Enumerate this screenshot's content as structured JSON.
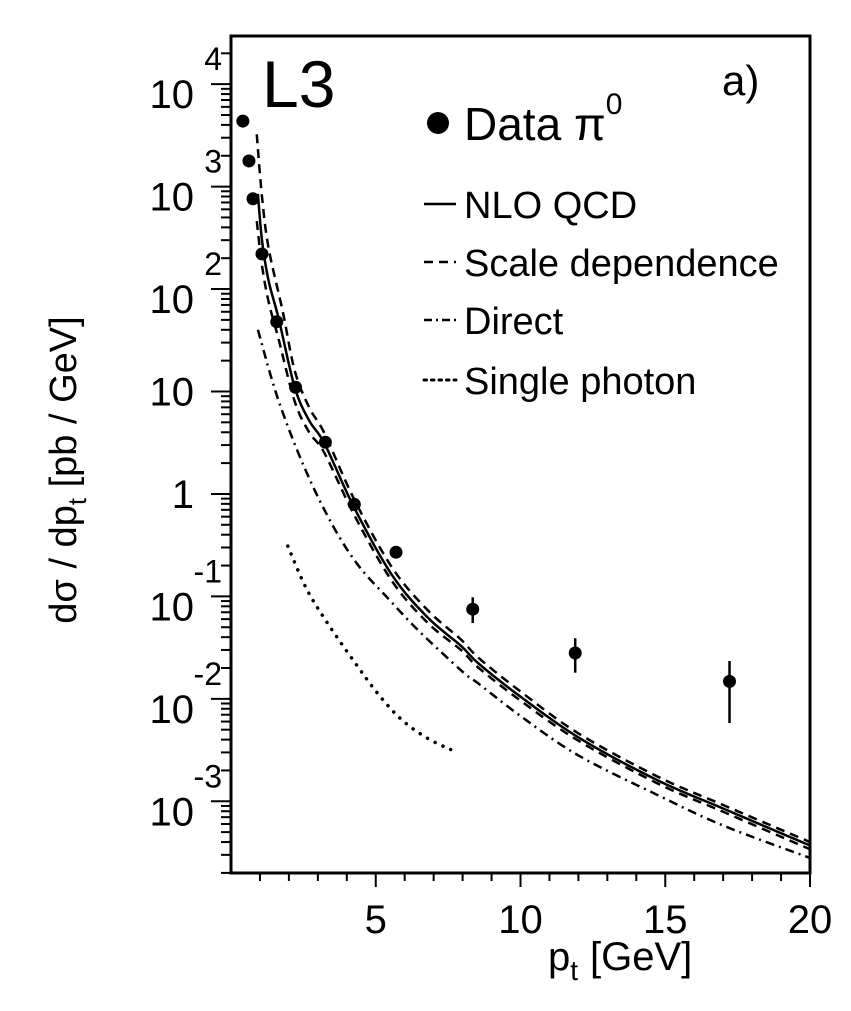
{
  "chart_data": {
    "type": "scatter",
    "experiment_label": "L3",
    "panel_label": "a)",
    "xlabel": "p",
    "xlabel_sub": "t",
    "xlabel_unit": "[GeV]",
    "ylabel_parts": [
      "dσ / dp",
      "t",
      " [pb / GeV]"
    ],
    "xlim": [
      0,
      20
    ],
    "ylim_log10": [
      -3.7,
      4.47
    ],
    "yscale": "log",
    "grid": false,
    "legend_position": "top-right",
    "x_ticks": [
      {
        "value": 5,
        "label": "5"
      },
      {
        "value": 10,
        "label": "10"
      },
      {
        "value": 15,
        "label": "15"
      },
      {
        "value": 20,
        "label": "20"
      }
    ],
    "y_ticks": [
      {
        "exp": 4,
        "base": "10",
        "sup": "4"
      },
      {
        "exp": 3,
        "base": "10",
        "sup": "3"
      },
      {
        "exp": 2,
        "base": "10",
        "sup": "2"
      },
      {
        "exp": 1,
        "base": "10",
        "sup": ""
      },
      {
        "exp": 0,
        "base": "1",
        "sup": ""
      },
      {
        "exp": -1,
        "base": "10",
        "sup": "-1"
      },
      {
        "exp": -2,
        "base": "10",
        "sup": "-2"
      },
      {
        "exp": -3,
        "base": "10",
        "sup": "-3"
      }
    ],
    "legend": [
      {
        "key": "data",
        "label": "Data π",
        "sup": "0",
        "style": "marker"
      },
      {
        "key": "nlo",
        "label": "NLO QCD",
        "style": "solid"
      },
      {
        "key": "scale",
        "label": "Scale dependence",
        "style": "dashed"
      },
      {
        "key": "direct",
        "label": "Direct",
        "style": "dashdot"
      },
      {
        "key": "single",
        "label": "Single photon",
        "style": "dotted"
      }
    ],
    "series": [
      {
        "name": "Data π0",
        "style": "marker",
        "points": [
          {
            "x": 0.41,
            "y": 4360,
            "ylo": 4360,
            "yhi": 4360
          },
          {
            "x": 0.62,
            "y": 1780,
            "ylo": 1780,
            "yhi": 1780
          },
          {
            "x": 0.76,
            "y": 760,
            "ylo": 760,
            "yhi": 760
          },
          {
            "x": 1.07,
            "y": 220,
            "ylo": 220,
            "yhi": 220
          },
          {
            "x": 1.58,
            "y": 48,
            "ylo": 48,
            "yhi": 48
          },
          {
            "x": 2.23,
            "y": 11,
            "ylo": 11,
            "yhi": 11
          },
          {
            "x": 3.26,
            "y": 3.2,
            "ylo": 2.9,
            "yhi": 3.6
          },
          {
            "x": 4.26,
            "y": 0.79,
            "ylo": 0.7,
            "yhi": 0.9
          },
          {
            "x": 5.7,
            "y": 0.27,
            "ylo": 0.24,
            "yhi": 0.31
          },
          {
            "x": 8.35,
            "y": 0.075,
            "ylo": 0.055,
            "yhi": 0.098
          },
          {
            "x": 11.89,
            "y": 0.028,
            "ylo": 0.018,
            "yhi": 0.039
          },
          {
            "x": 17.22,
            "y": 0.0148,
            "ylo": 0.0058,
            "yhi": 0.0234
          }
        ]
      },
      {
        "name": "NLO QCD",
        "style": "solid",
        "x": [
          0.93,
          1.07,
          1.3,
          1.65,
          2.2,
          2.7,
          3.23,
          4.26,
          5.57,
          6.8,
          7.94,
          8.56,
          10.0,
          12.0,
          14.74,
          17.0,
          20.0
        ],
        "y": [
          850,
          300,
          120,
          51,
          11,
          5.2,
          3.1,
          0.73,
          0.16,
          0.062,
          0.033,
          0.022,
          0.0105,
          0.0042,
          0.0016,
          0.00085,
          0.00037
        ]
      },
      {
        "name": "Scale dependence (upper)",
        "style": "dashed",
        "x": [
          0.89,
          1.07,
          1.3,
          1.79,
          2.2,
          2.7,
          3.23,
          4.26,
          5.57,
          6.8,
          7.94,
          8.56,
          10.0,
          12.0,
          14.74,
          17.0,
          20.0
        ],
        "y": [
          3240,
          800,
          250,
          60,
          16,
          7.0,
          3.9,
          0.88,
          0.19,
          0.073,
          0.038,
          0.025,
          0.0118,
          0.0046,
          0.00174,
          0.00092,
          0.0004
        ]
      },
      {
        "name": "Scale dependence (lower)",
        "style": "dashed",
        "x": [
          0.89,
          1.07,
          1.3,
          1.65,
          2.2,
          2.7,
          3.23,
          4.26,
          5.57,
          6.8,
          7.94,
          8.56,
          10.0,
          12.0,
          14.74,
          17.0,
          20.0
        ],
        "y": [
          460,
          170,
          75,
          32,
          8.0,
          4.0,
          2.5,
          0.62,
          0.14,
          0.055,
          0.03,
          0.02,
          0.0096,
          0.0039,
          0.00149,
          0.00079,
          0.00034
        ]
      },
      {
        "name": "Direct",
        "style": "dashdot",
        "x": [
          0.93,
          1.62,
          2.54,
          3.5,
          4.4,
          5.36,
          6.3,
          7.18,
          8.14,
          8.56,
          10.0,
          12.0,
          14.74,
          17.0,
          20.0
        ],
        "y": [
          40,
          8.5,
          1.8,
          0.5,
          0.2,
          0.1,
          0.052,
          0.03,
          0.017,
          0.014,
          0.0068,
          0.0028,
          0.00115,
          0.00058,
          0.00028
        ]
      },
      {
        "name": "Single photon",
        "style": "dotted",
        "x": [
          1.96,
          2.6,
          3.33,
          4.26,
          5.1,
          5.91,
          6.8,
          7.59
        ],
        "y": [
          0.31,
          0.12,
          0.055,
          0.023,
          0.011,
          0.0062,
          0.0041,
          0.0032
        ]
      }
    ]
  }
}
